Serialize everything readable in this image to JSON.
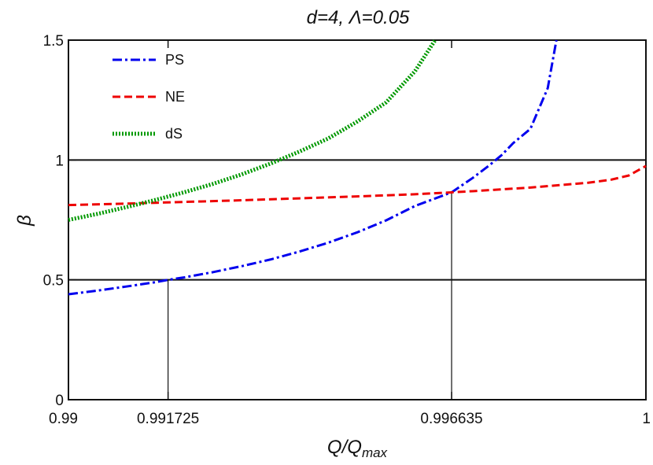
{
  "chart_data": {
    "type": "line",
    "title": "d=4, Λ=0.05",
    "xlabel": "Q/Q",
    "xlabel_subscript": "max",
    "ylabel": "β",
    "xlim": [
      0.99,
      1.0
    ],
    "ylim": [
      0,
      1.5
    ],
    "x_ticks": [
      0.99,
      0.991725,
      0.996635,
      1.0
    ],
    "x_tick_labels": [
      "0.99",
      "0.991725",
      "0.996635",
      "1"
    ],
    "y_ticks": [
      0,
      0.5,
      1,
      1.5
    ],
    "y_tick_labels": [
      "0",
      "0.5",
      "1",
      "1.5"
    ],
    "legend_position": "top-left",
    "horizontal_reference_lines": [
      0.5,
      1.0
    ],
    "vertical_markers": [
      {
        "x": 0.991725,
        "y": 0.5
      },
      {
        "x": 0.996635,
        "y": 0.865
      }
    ],
    "series": [
      {
        "name": "PS",
        "color": "#0000ee",
        "dash": "dash-dot",
        "x": [
          0.99,
          0.9905,
          0.991,
          0.9915,
          0.991725,
          0.992,
          0.9925,
          0.993,
          0.9935,
          0.994,
          0.9945,
          0.995,
          0.9955,
          0.996,
          0.9963,
          0.996635,
          0.997,
          0.9973,
          0.9975,
          0.9977,
          0.998,
          0.9983,
          0.99845
        ],
        "values": [
          0.44,
          0.455,
          0.472,
          0.49,
          0.5,
          0.51,
          0.532,
          0.557,
          0.585,
          0.618,
          0.655,
          0.698,
          0.748,
          0.808,
          0.835,
          0.865,
          0.925,
          0.98,
          1.02,
          1.07,
          1.13,
          1.3,
          1.5
        ]
      },
      {
        "name": "NE",
        "color": "#ee0000",
        "dash": "dashed",
        "x": [
          0.99,
          0.991,
          0.992,
          0.993,
          0.994,
          0.995,
          0.996,
          0.996635,
          0.997,
          0.998,
          0.999,
          0.9994,
          0.9997,
          1.0
        ],
        "values": [
          0.812,
          0.818,
          0.825,
          0.832,
          0.84,
          0.848,
          0.857,
          0.865,
          0.87,
          0.885,
          0.905,
          0.918,
          0.935,
          0.975
        ]
      },
      {
        "name": "dS",
        "color": "#009900",
        "dash": "dotted",
        "x": [
          0.99,
          0.9905,
          0.991,
          0.9915,
          0.992,
          0.9925,
          0.993,
          0.9935,
          0.994,
          0.9945,
          0.995,
          0.9955,
          0.996,
          0.99635
        ],
        "values": [
          0.75,
          0.775,
          0.803,
          0.833,
          0.865,
          0.9,
          0.94,
          0.985,
          1.035,
          1.09,
          1.16,
          1.24,
          1.37,
          1.5
        ]
      }
    ]
  }
}
